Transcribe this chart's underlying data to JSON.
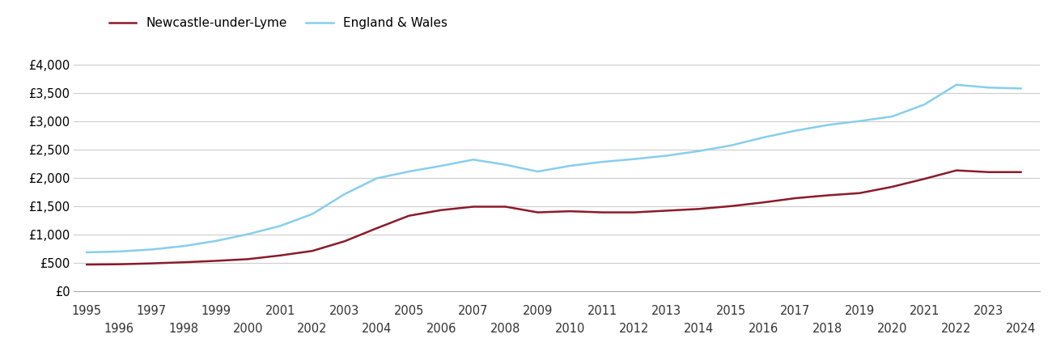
{
  "newcastle_years": [
    1995,
    1996,
    1997,
    1998,
    1999,
    2000,
    2001,
    2002,
    2003,
    2004,
    2005,
    2006,
    2007,
    2008,
    2009,
    2010,
    2011,
    2012,
    2013,
    2014,
    2015,
    2016,
    2017,
    2018,
    2019,
    2020,
    2021,
    2022,
    2023,
    2024
  ],
  "newcastle_values": [
    470,
    475,
    490,
    510,
    535,
    565,
    630,
    710,
    880,
    1110,
    1330,
    1430,
    1490,
    1490,
    1390,
    1410,
    1390,
    1390,
    1420,
    1450,
    1500,
    1565,
    1640,
    1690,
    1730,
    1840,
    1980,
    2130,
    2100,
    2100
  ],
  "england_years": [
    1995,
    1996,
    1997,
    1998,
    1999,
    2000,
    2001,
    2002,
    2003,
    2004,
    2005,
    2006,
    2007,
    2008,
    2009,
    2010,
    2011,
    2012,
    2013,
    2014,
    2015,
    2016,
    2017,
    2018,
    2019,
    2020,
    2021,
    2022,
    2023,
    2024
  ],
  "england_values": [
    685,
    700,
    735,
    795,
    885,
    1005,
    1150,
    1360,
    1710,
    1990,
    2110,
    2210,
    2320,
    2230,
    2110,
    2210,
    2280,
    2330,
    2390,
    2470,
    2570,
    2710,
    2830,
    2930,
    3000,
    3080,
    3290,
    3640,
    3590,
    3575
  ],
  "newcastle_color": "#8B1A2A",
  "england_color": "#87CEEB",
  "newcastle_label": "Newcastle-under-Lyme",
  "england_label": "England & Wales",
  "yticks": [
    0,
    500,
    1000,
    1500,
    2000,
    2500,
    3000,
    3500,
    4000
  ],
  "ytick_labels": [
    "£0",
    "£500",
    "£1,000",
    "£1,500",
    "£2,000",
    "£2,500",
    "£3,000",
    "£3,500",
    "£4,000"
  ],
  "ylim": [
    0,
    4300
  ],
  "xlim": [
    1994.6,
    2024.6
  ],
  "line_width": 1.8,
  "bg_color": "#ffffff",
  "grid_color": "#cccccc",
  "legend_fontsize": 11,
  "tick_fontsize": 10.5
}
